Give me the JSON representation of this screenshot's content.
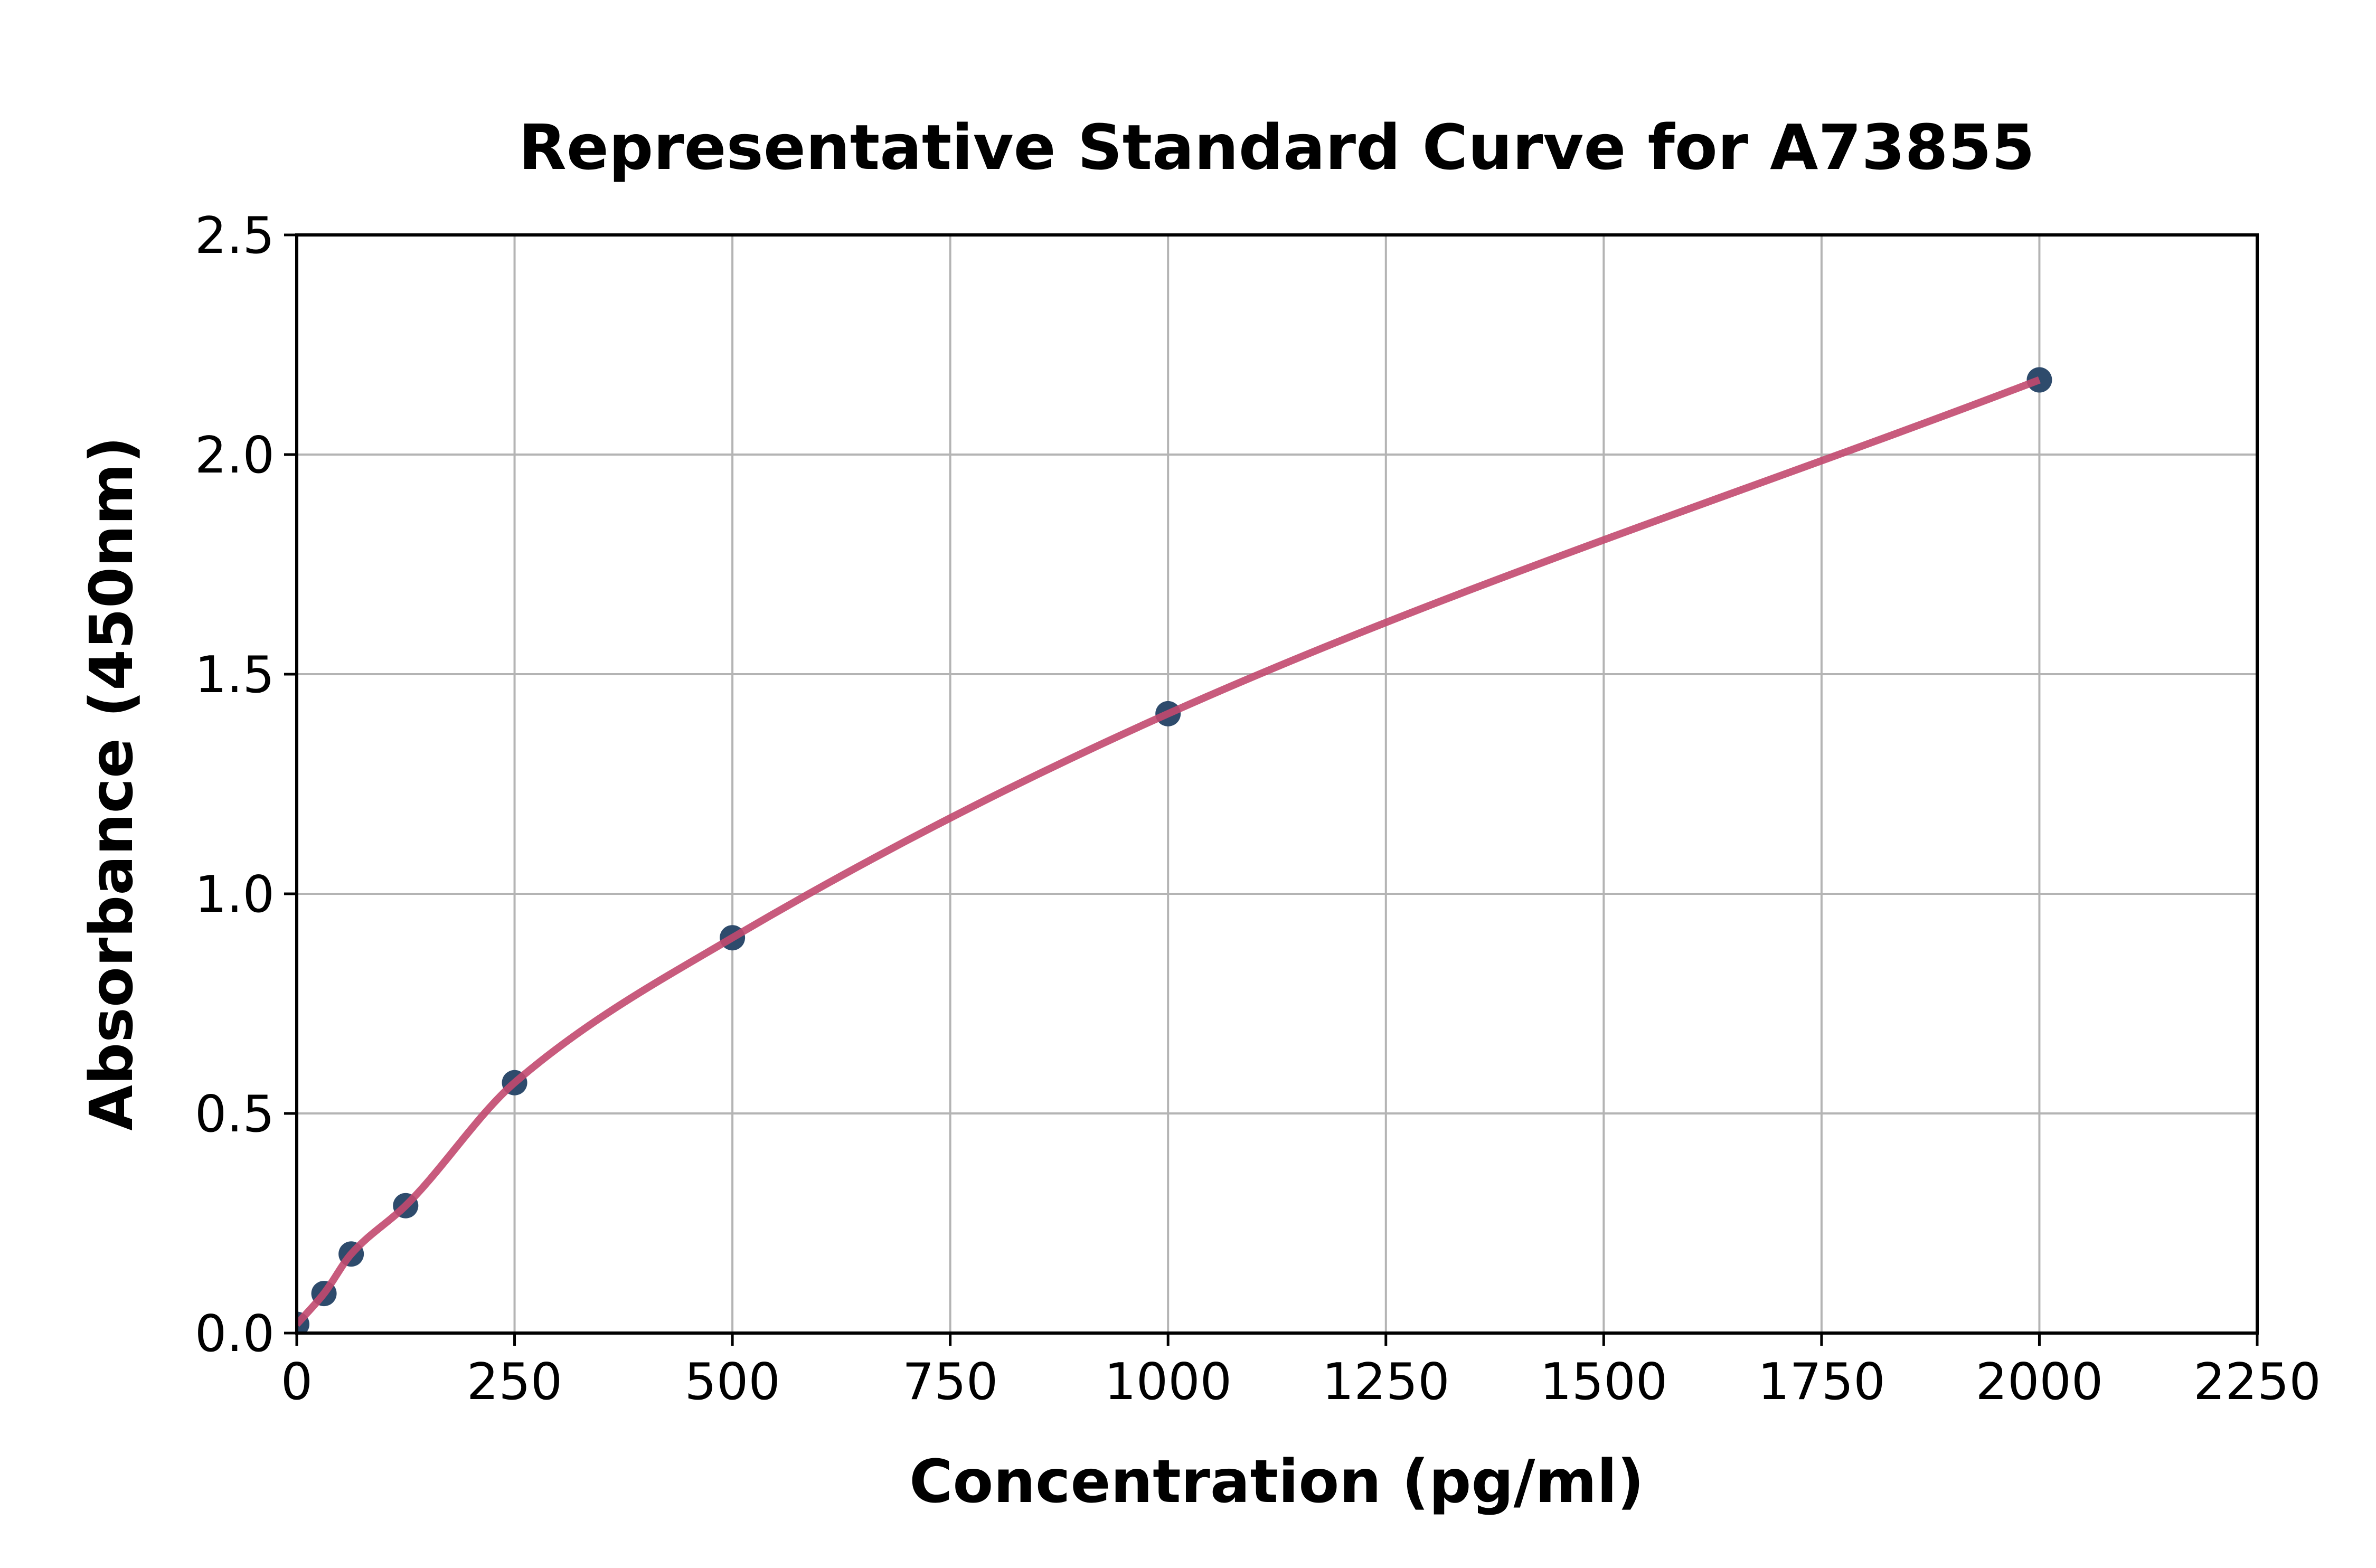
{
  "chart_data": {
    "type": "scatter",
    "title": "Representative Standard Curve for A73855",
    "xlabel": "Concentration (pg/ml)",
    "ylabel": "Absorbance (450nm)",
    "xlim": [
      0,
      2250
    ],
    "ylim": [
      0,
      2.5
    ],
    "x_ticks": [
      0,
      250,
      500,
      750,
      1000,
      1250,
      1500,
      1750,
      2000,
      2250
    ],
    "y_ticks": [
      0.0,
      0.5,
      1.0,
      1.5,
      2.0,
      2.5
    ],
    "y_tick_decimals": 1,
    "grid": true,
    "legend": null,
    "series": [
      {
        "name": "standard-points",
        "type": "scatter",
        "marker": "circle",
        "color": "#2e4b6c",
        "points": [
          {
            "x": 0,
            "y": 0.02
          },
          {
            "x": 31.25,
            "y": 0.09
          },
          {
            "x": 62.5,
            "y": 0.18
          },
          {
            "x": 125,
            "y": 0.29
          },
          {
            "x": 250,
            "y": 0.57
          },
          {
            "x": 500,
            "y": 0.9
          },
          {
            "x": 1000,
            "y": 1.41
          },
          {
            "x": 2000,
            "y": 2.17
          }
        ]
      },
      {
        "name": "fit-curve",
        "type": "line",
        "style": "smooth curve through the standard points, from (0, 0.02) to (2000, 2.17)",
        "color": "#c2496f"
      }
    ],
    "colors": {
      "marker": "#2e4b6c",
      "curve": "#c2496f",
      "grid": "#b4b4b4",
      "axis": "#000000",
      "background": "#ffffff",
      "text": "#000000"
    }
  }
}
